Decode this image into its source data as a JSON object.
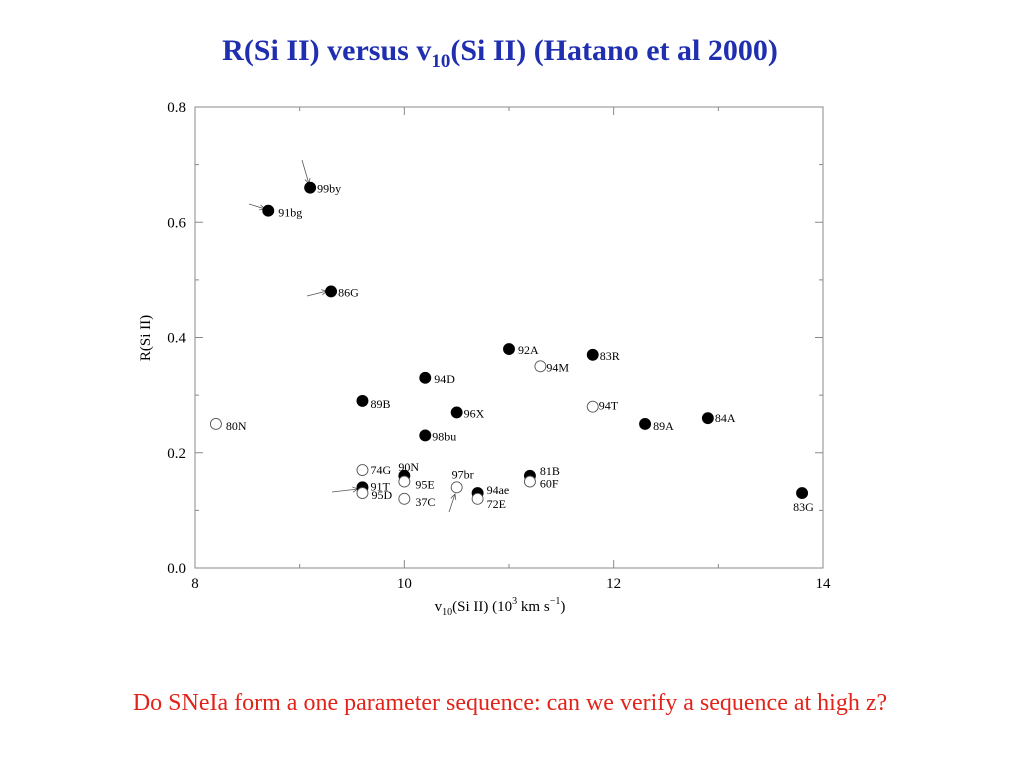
{
  "title": {
    "pre": "R(Si II) versus v",
    "sub": "10",
    "post": "(Si II) (Hatano et al 2000)"
  },
  "footer": "Do SNeIa form a one parameter sequence: can we verify a sequence at high z?",
  "chart_data": {
    "type": "scatter",
    "xlabel": {
      "pre": "v",
      "sub": "10",
      "mid": "(Si II)   (10",
      "sup": "3",
      "post": "  km s",
      "sup2": "−1",
      "end": ")"
    },
    "ylabel": "R(Si II)",
    "xlim": [
      8,
      14
    ],
    "ylim": [
      0.0,
      0.8
    ],
    "xticks": [
      "8",
      "10",
      "12",
      "14"
    ],
    "yticks": [
      "0.0",
      "0.2",
      "0.4",
      "0.6",
      "0.8"
    ],
    "grid": false,
    "points": [
      {
        "name": "99by",
        "x": 9.1,
        "y": 0.66,
        "filled": true
      },
      {
        "name": "91bg",
        "x": 8.7,
        "y": 0.62,
        "filled": true
      },
      {
        "name": "86G",
        "x": 9.3,
        "y": 0.48,
        "filled": true
      },
      {
        "name": "92A",
        "x": 11.0,
        "y": 0.38,
        "filled": true
      },
      {
        "name": "94M",
        "x": 11.3,
        "y": 0.35,
        "filled": false
      },
      {
        "name": "83R",
        "x": 11.8,
        "y": 0.37,
        "filled": true
      },
      {
        "name": "94D",
        "x": 10.2,
        "y": 0.33,
        "filled": true
      },
      {
        "name": "89B",
        "x": 9.6,
        "y": 0.29,
        "filled": true
      },
      {
        "name": "96X",
        "x": 10.5,
        "y": 0.27,
        "filled": true
      },
      {
        "name": "94T",
        "x": 11.8,
        "y": 0.28,
        "filled": false
      },
      {
        "name": "89A",
        "x": 12.3,
        "y": 0.25,
        "filled": true
      },
      {
        "name": "84A",
        "x": 12.9,
        "y": 0.26,
        "filled": true
      },
      {
        "name": "80N",
        "x": 8.2,
        "y": 0.25,
        "filled": false
      },
      {
        "name": "98bu",
        "x": 10.2,
        "y": 0.23,
        "filled": true
      },
      {
        "name": "74G",
        "x": 9.6,
        "y": 0.17,
        "filled": false
      },
      {
        "name": "91T",
        "x": 9.6,
        "y": 0.14,
        "filled": true
      },
      {
        "name": "95D",
        "x": 9.6,
        "y": 0.13,
        "filled": false
      },
      {
        "name": "90N",
        "x": 10.0,
        "y": 0.16,
        "filled": true
      },
      {
        "name": "95E",
        "x": 10.0,
        "y": 0.15,
        "filled": false
      },
      {
        "name": "37C",
        "x": 10.0,
        "y": 0.12,
        "filled": false
      },
      {
        "name": "97br",
        "x": 10.5,
        "y": 0.14,
        "filled": false
      },
      {
        "name": "94ae",
        "x": 10.7,
        "y": 0.13,
        "filled": true
      },
      {
        "name": "72E",
        "x": 10.7,
        "y": 0.12,
        "filled": false
      },
      {
        "name": "81B",
        "x": 11.2,
        "y": 0.16,
        "filled": true
      },
      {
        "name": "60F",
        "x": 11.2,
        "y": 0.15,
        "filled": false
      },
      {
        "name": "83G",
        "x": 13.8,
        "y": 0.13,
        "filled": true
      }
    ]
  }
}
